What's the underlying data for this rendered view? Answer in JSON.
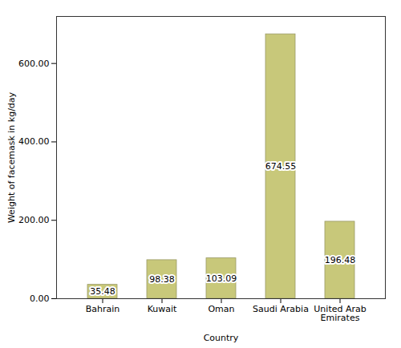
{
  "chart_data": {
    "type": "bar",
    "categories": [
      "Bahrain",
      "Kuwait",
      "Oman",
      "Saudi Arabia",
      "United Arab\nEmirates"
    ],
    "values": [
      35.48,
      98.38,
      103.09,
      674.55,
      196.48
    ],
    "color": "#c8c87a",
    "xlabel": "Country",
    "ylabel": "Weight of facemask in kg/day",
    "ylim": [
      0,
      720
    ],
    "yticks": [
      {
        "value": 0,
        "label": "0.00"
      },
      {
        "value": 200,
        "label": "200.00"
      },
      {
        "value": 400,
        "label": "400.00"
      },
      {
        "value": 600,
        "label": "600.00"
      }
    ],
    "data_labels": true,
    "grid": false
  }
}
